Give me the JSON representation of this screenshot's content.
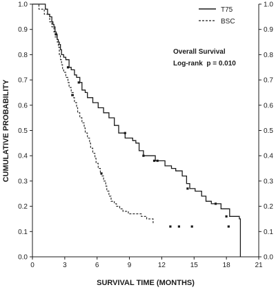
{
  "chart_data": {
    "type": "line",
    "xlabel": "SURVIVAL TIME (MONTHS)",
    "ylabel": "CUMULATIVE PROBABILITY",
    "xlim": [
      0,
      21
    ],
    "ylim": [
      0,
      1
    ],
    "x_ticks": [
      "0",
      "3",
      "6",
      "9",
      "12",
      "15",
      "18",
      "21"
    ],
    "y_ticks": [
      "0.0",
      "0.1",
      "0.2",
      "0.3",
      "0.4",
      "0.5",
      "0.6",
      "0.7",
      "0.8",
      "0.9",
      "1.0"
    ],
    "y_ticks_right": true,
    "grid": false,
    "legend_position": "top-right",
    "annotations": [
      "Overall Survival",
      "Log-rank  p = 0.010"
    ],
    "series": [
      {
        "name": "T75",
        "line_style": "solid",
        "x": [
          0,
          1.2,
          1.4,
          1.6,
          1.8,
          1.9,
          2.0,
          2.1,
          2.2,
          2.3,
          2.4,
          2.5,
          2.6,
          2.7,
          2.9,
          3.1,
          3.4,
          3.6,
          3.9,
          4.1,
          4.4,
          4.6,
          4.9,
          5.1,
          5.6,
          6.1,
          6.6,
          7.1,
          7.6,
          8.0,
          8.6,
          9.3,
          9.6,
          9.9,
          10.3,
          11.4,
          12.3,
          12.9,
          13.3,
          13.9,
          14.3,
          14.6,
          15.1,
          15.7,
          16.1,
          16.6,
          17.5,
          18.3,
          19.2,
          19.3
        ],
        "y": [
          1.0,
          0.98,
          0.96,
          0.95,
          0.93,
          0.92,
          0.91,
          0.89,
          0.88,
          0.86,
          0.85,
          0.84,
          0.82,
          0.8,
          0.79,
          0.78,
          0.75,
          0.74,
          0.72,
          0.71,
          0.69,
          0.66,
          0.65,
          0.63,
          0.61,
          0.59,
          0.57,
          0.55,
          0.52,
          0.49,
          0.47,
          0.46,
          0.45,
          0.42,
          0.4,
          0.38,
          0.36,
          0.35,
          0.34,
          0.32,
          0.29,
          0.27,
          0.26,
          0.24,
          0.22,
          0.21,
          0.19,
          0.16,
          0.15,
          0.0
        ],
        "censor_x": [
          2.2,
          3.3,
          4.3,
          8.6,
          10.3,
          11.3,
          11.6,
          14.4,
          17.0,
          18.0
        ],
        "censor_y": [
          0.88,
          0.75,
          0.69,
          0.49,
          0.4,
          0.38,
          0.38,
          0.27,
          0.21,
          0.16
        ]
      },
      {
        "name": "BSC",
        "line_style": "dashed",
        "x": [
          0,
          0.6,
          1.1,
          1.6,
          1.8,
          2.0,
          2.1,
          2.3,
          2.4,
          2.5,
          2.6,
          2.7,
          2.8,
          2.9,
          3.1,
          3.3,
          3.4,
          3.6,
          3.8,
          3.9,
          4.1,
          4.2,
          4.4,
          4.6,
          4.8,
          4.9,
          5.1,
          5.3,
          5.4,
          5.6,
          5.8,
          5.9,
          6.1,
          6.3,
          6.4,
          6.6,
          6.8,
          6.9,
          7.1,
          7.3,
          7.6,
          7.8,
          8.1,
          8.4,
          8.6,
          8.9,
          9.4,
          10.1,
          10.6,
          11.2
        ],
        "y": [
          1.0,
          0.98,
          0.96,
          0.93,
          0.91,
          0.89,
          0.87,
          0.85,
          0.83,
          0.8,
          0.78,
          0.76,
          0.74,
          0.73,
          0.71,
          0.69,
          0.67,
          0.65,
          0.63,
          0.61,
          0.59,
          0.57,
          0.55,
          0.53,
          0.51,
          0.49,
          0.47,
          0.45,
          0.43,
          0.41,
          0.39,
          0.37,
          0.35,
          0.33,
          0.32,
          0.3,
          0.28,
          0.26,
          0.24,
          0.22,
          0.21,
          0.2,
          0.19,
          0.18,
          0.18,
          0.17,
          0.17,
          0.16,
          0.15,
          0.13
        ],
        "censor_x": [
          3.7,
          6.4,
          12.8,
          13.6,
          14.8,
          18.2
        ],
        "censor_y": [
          0.64,
          0.33,
          0.12,
          0.12,
          0.12,
          0.12
        ]
      }
    ]
  }
}
